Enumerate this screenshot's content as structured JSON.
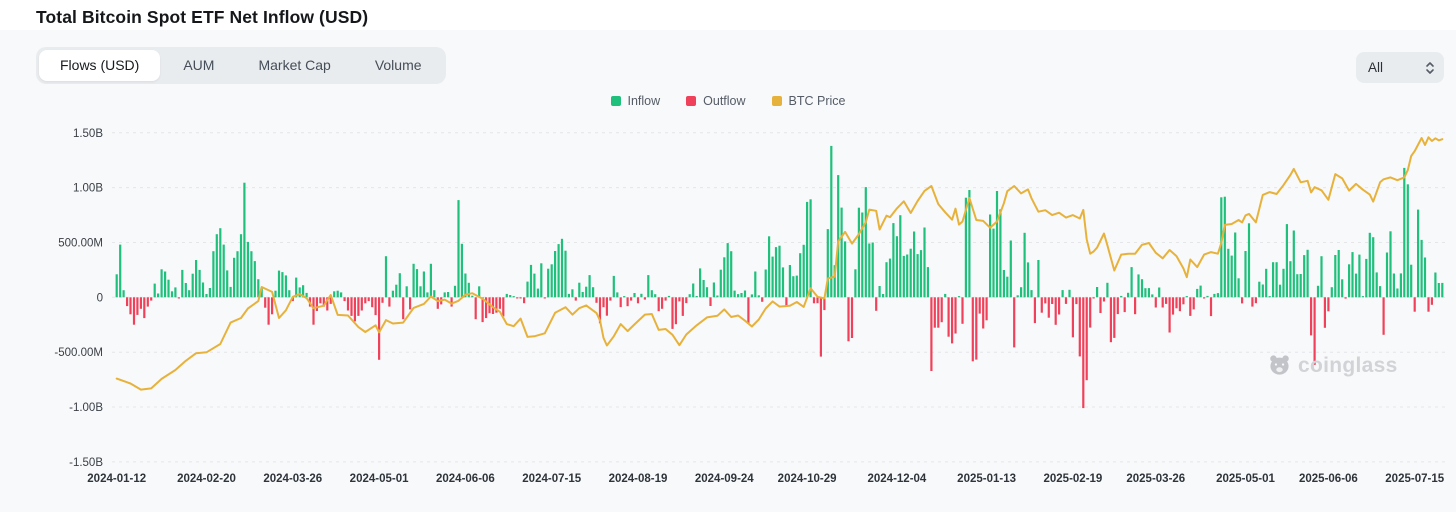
{
  "header": {
    "title": "Total Bitcoin Spot ETF Net Inflow (USD)"
  },
  "tabs": {
    "active_index": 0,
    "items": [
      {
        "label": "Flows (USD)"
      },
      {
        "label": "AUM"
      },
      {
        "label": "Market Cap"
      },
      {
        "label": "Volume"
      }
    ]
  },
  "range_select": {
    "value": "All"
  },
  "legend": {
    "items": [
      {
        "label": "Inflow",
        "color": "#1fc07c"
      },
      {
        "label": "Outflow",
        "color": "#f0415a"
      },
      {
        "label": "BTC Price",
        "color": "#e7b23c"
      }
    ]
  },
  "watermark": {
    "text": "coinglass"
  },
  "chart_data": {
    "type": "bar+line",
    "title": "Total Bitcoin Spot ETF Net Inflow (USD)",
    "description": "Daily net flow bars (USD) for US spot Bitcoin ETFs with BTC price overlay line",
    "legend_position": "top-center",
    "colors": {
      "inflow": "#1fc07c",
      "outflow": "#f0415a",
      "btc_price": "#e7b23c"
    },
    "y_axis": {
      "labels": [
        "1.50B",
        "1.00B",
        "500.00M",
        "0",
        "-500.00M",
        "-1.00B",
        "-1.50B"
      ],
      "values_b": [
        1.5,
        1,
        0.5,
        0,
        -0.5,
        -1,
        -1.5
      ],
      "grid": "dashed"
    },
    "x_ticks": [
      {
        "label": "2024-01-12",
        "i": 0
      },
      {
        "label": "2024-02-20",
        "i": 26
      },
      {
        "label": "2024-03-26",
        "i": 51
      },
      {
        "label": "2024-05-01",
        "i": 76
      },
      {
        "label": "2024-06-06",
        "i": 101
      },
      {
        "label": "2024-07-15",
        "i": 126
      },
      {
        "label": "2024-08-19",
        "i": 151
      },
      {
        "label": "2024-09-24",
        "i": 176
      },
      {
        "label": "2024-10-29",
        "i": 200
      },
      {
        "label": "2024-12-04",
        "i": 226
      },
      {
        "label": "2025-01-13",
        "i": 252
      },
      {
        "label": "2025-02-19",
        "i": 277
      },
      {
        "label": "2025-03-26",
        "i": 301
      },
      {
        "label": "2025-05-01",
        "i": 327
      },
      {
        "label": "2025-06-06",
        "i": 351
      },
      {
        "label": "2025-07-15",
        "i": 376
      }
    ],
    "series": [
      {
        "name": "Inflow",
        "type": "bar",
        "rule": "flows_m value >= 0"
      },
      {
        "name": "Outflow",
        "type": "bar",
        "rule": "flows_m value < 0"
      },
      {
        "name": "BTC Price",
        "type": "line",
        "data_key": "btc_price_k"
      }
    ],
    "flows_m": [
      210,
      480,
      65,
      -80,
      -155,
      -250,
      -160,
      -105,
      -190,
      -85,
      -30,
      125,
      35,
      255,
      235,
      160,
      55,
      90,
      -10,
      250,
      130,
      65,
      215,
      340,
      250,
      135,
      30,
      85,
      420,
      575,
      630,
      480,
      245,
      95,
      360,
      420,
      575,
      1045,
      505,
      420,
      330,
      165,
      95,
      -95,
      -250,
      -155,
      60,
      243,
      230,
      200,
      65,
      -35,
      180,
      90,
      110,
      40,
      -85,
      -250,
      -125,
      -55,
      -85,
      -120,
      -60,
      55,
      60,
      45,
      -35,
      -120,
      -170,
      -220,
      -170,
      -120,
      -55,
      -35,
      -90,
      -162,
      -570,
      -50,
      375,
      -85,
      60,
      115,
      220,
      -200,
      100,
      -110,
      305,
      257,
      100,
      235,
      45,
      305,
      65,
      -105,
      -65,
      45,
      48,
      -85,
      105,
      886,
      488,
      217,
      132,
      15,
      -200,
      100,
      -226,
      -190,
      -145,
      -152,
      -140,
      -105,
      -174,
      31,
      21,
      11,
      -11,
      -8,
      -54,
      143,
      295,
      216,
      79,
      310,
      -3,
      261,
      301,
      422,
      485,
      533,
      425,
      31,
      73,
      -30,
      133,
      48,
      97,
      202,
      92,
      -50,
      -237,
      -90,
      -168,
      -30,
      195,
      45,
      -89,
      11,
      -81,
      -30,
      39,
      -55,
      32,
      -21,
      202,
      65,
      28,
      -127,
      -105,
      -30,
      13,
      -288,
      -245,
      -37,
      -170,
      -53,
      28,
      126,
      12,
      263,
      158,
      92,
      -79,
      135,
      16,
      252,
      365,
      494,
      420,
      61,
      29,
      39,
      62,
      -243,
      26,
      235,
      18,
      -41,
      253,
      556,
      371,
      458,
      470,
      273,
      -80,
      294,
      192,
      198,
      402,
      479,
      870,
      893,
      -55,
      -54,
      -541,
      -117,
      622,
      1380,
      293,
      1114,
      818,
      510,
      -401,
      -371,
      255,
      817,
      773,
      1005,
      490,
      500,
      -123,
      103,
      30,
      320,
      353,
      676,
      557,
      748,
      377,
      390,
      443,
      600,
      394,
      430,
      636,
      275,
      -672,
      -277,
      -277,
      -227,
      31,
      -359,
      -420,
      -330,
      5,
      -242,
      908,
      978,
      -583,
      -568,
      -149,
      -284,
      -210,
      755,
      626,
      969,
      802,
      249,
      188,
      518,
      -457,
      18,
      92,
      588,
      318,
      66,
      -235,
      340,
      -140,
      -56,
      -186,
      -61,
      -251,
      -157,
      66,
      -60,
      68,
      -365,
      -62,
      -539,
      -1010,
      -756,
      -276,
      -3,
      94,
      -143,
      -38,
      132,
      -409,
      -370,
      -153,
      13,
      -135,
      41,
      275,
      -154,
      209,
      165,
      83,
      84,
      26,
      -93,
      89,
      -93,
      -60,
      -321,
      -158,
      -100,
      -127,
      -64,
      1,
      -170,
      -110,
      77,
      107,
      -5,
      13,
      -171,
      31,
      38,
      912,
      917,
      442,
      380,
      591,
      173,
      -56,
      422,
      675,
      -85,
      -54,
      142,
      117,
      260,
      5,
      320,
      320,
      115,
      260,
      667,
      329,
      609,
      211,
      212,
      385,
      433,
      -347,
      -616,
      105,
      375,
      -278,
      -128,
      92,
      386,
      431,
      164,
      -12,
      301,
      412,
      216,
      389,
      6,
      350,
      588,
      548,
      227,
      102,
      -342,
      408,
      602,
      217,
      80,
      218,
      1180,
      1030,
      297,
      -131,
      799,
      523,
      363,
      -131,
      -68,
      226,
      130,
      131
    ],
    "price_axis_k": {
      "min": 16,
      "max": 123.5,
      "hidden": true
    },
    "btc_price_k": [
      [
        0,
        43.2
      ],
      [
        4,
        41.6
      ],
      [
        7,
        39.6
      ],
      [
        10,
        40.0
      ],
      [
        13,
        43.1
      ],
      [
        17,
        46.0
      ],
      [
        20,
        49.0
      ],
      [
        23,
        51.5
      ],
      [
        26,
        51.8
      ],
      [
        30,
        54.5
      ],
      [
        33,
        61.5
      ],
      [
        36,
        63.0
      ],
      [
        38,
        66.1
      ],
      [
        41,
        68.5
      ],
      [
        42,
        73.1
      ],
      [
        45,
        71.5
      ],
      [
        47,
        63.0
      ],
      [
        49,
        65.5
      ],
      [
        51,
        69.9
      ],
      [
        53,
        70.8
      ],
      [
        55,
        69.5
      ],
      [
        57,
        66.2
      ],
      [
        60,
        67.0
      ],
      [
        62,
        70.5
      ],
      [
        64,
        64.0
      ],
      [
        67,
        63.8
      ],
      [
        70,
        60.0
      ],
      [
        72,
        58.4
      ],
      [
        75,
        60.6
      ],
      [
        76,
        58.3
      ],
      [
        78,
        62.3
      ],
      [
        80,
        61.2
      ],
      [
        83,
        61.5
      ],
      [
        86,
        66.3
      ],
      [
        89,
        67.6
      ],
      [
        91,
        70.0
      ],
      [
        93,
        68.5
      ],
      [
        95,
        69.0
      ],
      [
        97,
        67.7
      ],
      [
        99,
        68.6
      ],
      [
        101,
        70.6
      ],
      [
        103,
        71.1
      ],
      [
        106,
        69.3
      ],
      [
        109,
        66.5
      ],
      [
        111,
        65.0
      ],
      [
        113,
        61.0
      ],
      [
        115,
        60.3
      ],
      [
        117,
        62.8
      ],
      [
        119,
        56.8
      ],
      [
        121,
        57.0
      ],
      [
        124,
        58.0
      ],
      [
        127,
        64.7
      ],
      [
        130,
        66.5
      ],
      [
        132,
        64.1
      ],
      [
        134,
        66.2
      ],
      [
        136,
        67.1
      ],
      [
        139,
        64.6
      ],
      [
        140,
        62.2
      ],
      [
        141,
        56.5
      ],
      [
        142,
        54.0
      ],
      [
        144,
        57.0
      ],
      [
        146,
        61.0
      ],
      [
        148,
        58.7
      ],
      [
        150,
        60.9
      ],
      [
        153,
        64.1
      ],
      [
        155,
        64.3
      ],
      [
        157,
        59.1
      ],
      [
        159,
        59.4
      ],
      [
        161,
        57.5
      ],
      [
        163,
        54.1
      ],
      [
        165,
        57.6
      ],
      [
        168,
        60.6
      ],
      [
        171,
        63.2
      ],
      [
        174,
        63.7
      ],
      [
        176,
        65.8
      ],
      [
        178,
        63.3
      ],
      [
        180,
        63.8
      ],
      [
        182,
        62.1
      ],
      [
        184,
        60.2
      ],
      [
        186,
        62.5
      ],
      [
        188,
        66.1
      ],
      [
        190,
        68.4
      ],
      [
        192,
        66.7
      ],
      [
        195,
        67.0
      ],
      [
        197,
        68.2
      ],
      [
        199,
        66.6
      ],
      [
        201,
        72.7
      ],
      [
        203,
        69.9
      ],
      [
        205,
        69.4
      ],
      [
        206,
        75.9
      ],
      [
        208,
        76.5
      ],
      [
        209,
        88.0
      ],
      [
        211,
        91.1
      ],
      [
        213,
        87.3
      ],
      [
        215,
        90.4
      ],
      [
        217,
        94.3
      ],
      [
        218,
        98.4
      ],
      [
        220,
        98.0
      ],
      [
        221,
        91.9
      ],
      [
        223,
        96.4
      ],
      [
        224,
        95.9
      ],
      [
        226,
        98.8
      ],
      [
        228,
        101.1
      ],
      [
        230,
        97.3
      ],
      [
        232,
        101.2
      ],
      [
        234,
        104.5
      ],
      [
        236,
        106.1
      ],
      [
        238,
        100.2
      ],
      [
        240,
        97.5
      ],
      [
        242,
        95.1
      ],
      [
        243,
        98.7
      ],
      [
        244,
        93.5
      ],
      [
        245,
        94.5
      ],
      [
        247,
        102.2
      ],
      [
        249,
        95.0
      ],
      [
        251,
        94.7
      ],
      [
        253,
        92.5
      ],
      [
        255,
        94.5
      ],
      [
        257,
        100.5
      ],
      [
        258,
        104.4
      ],
      [
        260,
        106.1
      ],
      [
        262,
        103.7
      ],
      [
        264,
        105.0
      ],
      [
        265,
        102.1
      ],
      [
        267,
        97.7
      ],
      [
        269,
        98.2
      ],
      [
        271,
        96.6
      ],
      [
        273,
        97.4
      ],
      [
        275,
        95.8
      ],
      [
        277,
        96.6
      ],
      [
        279,
        95.5
      ],
      [
        280,
        98.3
      ],
      [
        281,
        88.7
      ],
      [
        282,
        84.0
      ],
      [
        283,
        84.7
      ],
      [
        284,
        86.0
      ],
      [
        286,
        90.6
      ],
      [
        287,
        86.7
      ],
      [
        289,
        78.5
      ],
      [
        291,
        83.7
      ],
      [
        293,
        84.0
      ],
      [
        295,
        84.0
      ],
      [
        297,
        86.9
      ],
      [
        299,
        87.5
      ],
      [
        301,
        84.3
      ],
      [
        303,
        82.5
      ],
      [
        305,
        85.2
      ],
      [
        307,
        83.2
      ],
      [
        309,
        79.2
      ],
      [
        310,
        76.3
      ],
      [
        311,
        82.1
      ],
      [
        313,
        79.6
      ],
      [
        315,
        83.7
      ],
      [
        317,
        84.5
      ],
      [
        319,
        84.0
      ],
      [
        320,
        87.5
      ],
      [
        321,
        93.4
      ],
      [
        323,
        93.7
      ],
      [
        325,
        95.0
      ],
      [
        326,
        94.2
      ],
      [
        327,
        96.5
      ],
      [
        328,
        97.0
      ],
      [
        330,
        94.2
      ],
      [
        332,
        103.2
      ],
      [
        334,
        104.1
      ],
      [
        336,
        103.5
      ],
      [
        338,
        106.4
      ],
      [
        340,
        109.7
      ],
      [
        341,
        111.7
      ],
      [
        343,
        107.3
      ],
      [
        345,
        107.8
      ],
      [
        346,
        104.0
      ],
      [
        347,
        105.7
      ],
      [
        349,
        104.7
      ],
      [
        351,
        101.6
      ],
      [
        353,
        110.0
      ],
      [
        355,
        108.6
      ],
      [
        357,
        104.6
      ],
      [
        359,
        106.8
      ],
      [
        361,
        104.9
      ],
      [
        363,
        103.3
      ],
      [
        364,
        101.0
      ],
      [
        366,
        107.3
      ],
      [
        367,
        108.3
      ],
      [
        369,
        108.9
      ],
      [
        371,
        108.0
      ],
      [
        373,
        108.9
      ],
      [
        374,
        111.3
      ],
      [
        375,
        115.9
      ],
      [
        376,
        117.5
      ],
      [
        378,
        121.8
      ],
      [
        379,
        119.5
      ],
      [
        380,
        122.0
      ],
      [
        381,
        120.8
      ],
      [
        382,
        121.7
      ],
      [
        383,
        121.0
      ],
      [
        384,
        121.4
      ]
    ]
  }
}
